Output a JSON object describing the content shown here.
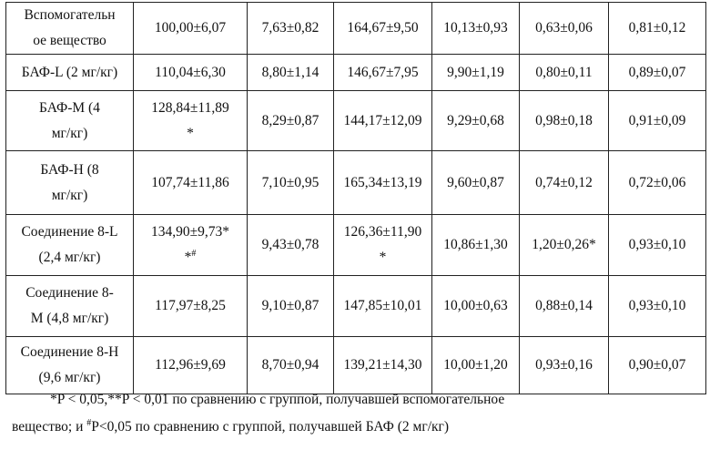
{
  "table": {
    "rows": [
      [
        [
          "Вспомогательн",
          "ое вещество"
        ],
        [
          "100,00±6,07"
        ],
        [
          "7,63±0,82"
        ],
        [
          "164,67±9,50"
        ],
        [
          "10,13±0,93"
        ],
        [
          "0,63±0,06"
        ],
        [
          "0,81±0,12"
        ]
      ],
      [
        [
          "БАФ-L (2 мг/кг)"
        ],
        [
          "110,04±6,30"
        ],
        [
          "8,80±1,14"
        ],
        [
          "146,67±7,95"
        ],
        [
          "9,90±1,19"
        ],
        [
          "0,80±0,11"
        ],
        [
          "0,89±0,07"
        ]
      ],
      [
        [
          "БАФ-M (4",
          "мг/кг)"
        ],
        [
          "128,84±11,89",
          "*"
        ],
        [
          "8,29±0,87"
        ],
        [
          "144,17±12,09"
        ],
        [
          "9,29±0,68"
        ],
        [
          "0,98±0,18"
        ],
        [
          "0,91±0,09"
        ]
      ],
      [
        [
          "БАФ-H (8",
          "мг/кг)"
        ],
        [
          "107,74±11,86"
        ],
        [
          "7,10±0,95"
        ],
        [
          "165,34±13,19"
        ],
        [
          "9,60±0,87"
        ],
        [
          "0,74±0,12"
        ],
        [
          "0,72±0,06"
        ]
      ],
      [
        [
          "Соединение 8-L",
          "(2,4 мг/кг)"
        ],
        [
          "134,90±9,73*",
          [
            "*",
            {
              "sup": "#"
            }
          ]
        ],
        [
          "9,43±0,78"
        ],
        [
          "126,36±11,90",
          "*"
        ],
        [
          "10,86±1,30"
        ],
        [
          "1,20±0,26*"
        ],
        [
          "0,93±0,10"
        ]
      ],
      [
        [
          "Соединение 8-",
          "M (4,8 мг/кг)"
        ],
        [
          "117,97±8,25"
        ],
        [
          "9,10±0,87"
        ],
        [
          "147,85±10,01"
        ],
        [
          "10,00±0,63"
        ],
        [
          "0,88±0,14"
        ],
        [
          "0,93±0,10"
        ]
      ],
      [
        [
          "Соединение 8-H",
          "(9,6 мг/кг)"
        ],
        [
          "112,96±9,69"
        ],
        [
          "8,70±0,94"
        ],
        [
          "139,21±14,30"
        ],
        [
          "10,00±1,20"
        ],
        [
          "0,93±0,16"
        ],
        [
          "0,90±0,07"
        ]
      ]
    ]
  },
  "footnote": {
    "lines": [
      [
        "*P < 0,05,**P < 0,01 по сравнению с группой, получавшей вспомогательное"
      ],
      [
        "вещество; и ",
        {
          "sup": "#"
        },
        "P<0,05 по сравнению с группой, получавшей БАФ (2 мг/кг)"
      ]
    ]
  }
}
